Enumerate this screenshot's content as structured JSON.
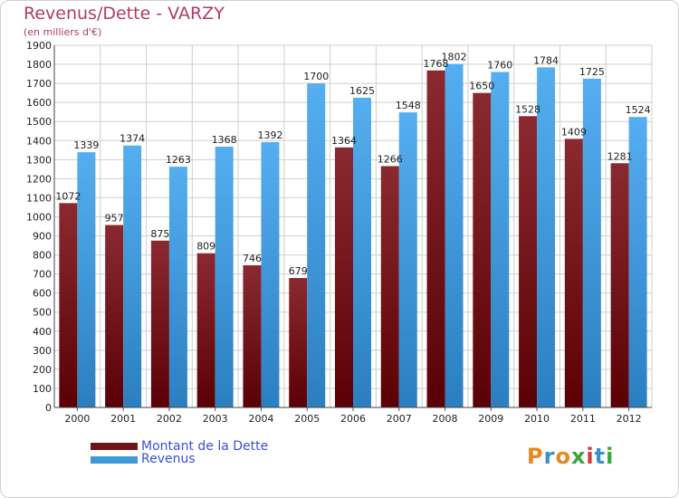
{
  "title": "Revenus/Dette - VARZY",
  "subtitle": "(en milliers d'€)",
  "logo_text": "Proxiti",
  "colors": {
    "dette": "#6e1318",
    "revenus": "#3d98da",
    "title": "#b03a6a",
    "legend_text": "#3b4fd8"
  },
  "legend": {
    "dette_label": "Montant de la Dette",
    "revenus_label": "Revenus"
  },
  "chart_data": {
    "type": "bar",
    "categories": [
      "2000",
      "2001",
      "2002",
      "2003",
      "2004",
      "2005",
      "2006",
      "2007",
      "2008",
      "2009",
      "2010",
      "2011",
      "2012"
    ],
    "series": [
      {
        "name": "Montant de la Dette",
        "values": [
          1072,
          957,
          875,
          809,
          746,
          679,
          1364,
          1266,
          1768,
          1650,
          1528,
          1409,
          1281
        ],
        "labels": [
          "1072",
          "957",
          "875",
          "809",
          "746",
          "679",
          "1364",
          "1266",
          "1768",
          "1650",
          "1528",
          "1409",
          "1281"
        ]
      },
      {
        "name": "Revenus",
        "values": [
          1339,
          1374,
          1263,
          1368,
          1392,
          1700,
          1625,
          1548,
          1802,
          1760,
          1784,
          1725,
          1524
        ],
        "labels": [
          "1339",
          "1374",
          "1263",
          "1368",
          "1392",
          "1700",
          "1625",
          "1548",
          "1802",
          "1760",
          "1784",
          "1725",
          "1524"
        ]
      }
    ],
    "yticks": [
      "0",
      "100",
      "200",
      "300",
      "400",
      "500",
      "600",
      "700",
      "800",
      "900",
      "1000",
      "1100",
      "1200",
      "1300",
      "1400",
      "1500",
      "1600",
      "1700",
      "1800",
      "1900"
    ],
    "ylim": [
      0,
      1900
    ],
    "grid": true,
    "legend_position": "bottom-left"
  }
}
